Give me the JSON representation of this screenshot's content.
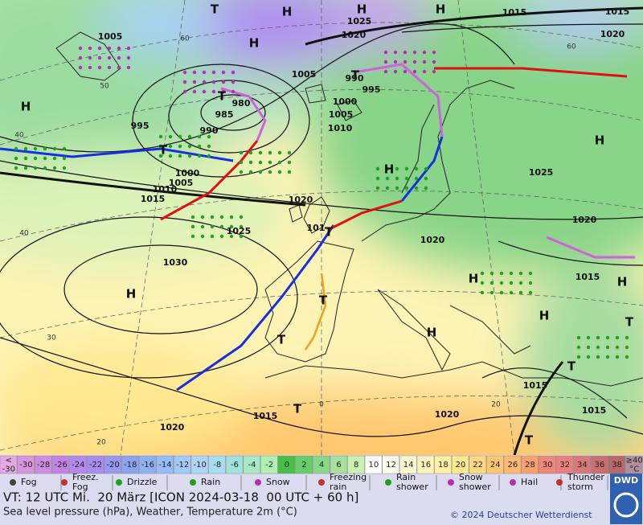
{
  "map": {
    "isobar_labels": [
      "1005",
      "1025",
      "1020",
      "1015",
      "1015",
      "1020",
      "1005",
      "990",
      "995",
      "1000",
      "1005",
      "1010",
      "980",
      "985",
      "990",
      "995",
      "1000",
      "1005",
      "1010",
      "1015",
      "1020",
      "1025",
      "1030",
      "1020",
      "1025",
      "1020",
      "1015",
      "1015",
      "1015",
      "1015",
      "1020",
      "1020",
      "101"
    ],
    "centers": [
      "H",
      "H",
      "H",
      "T",
      "H",
      "T",
      "H",
      "T",
      "T",
      "H",
      "T",
      "H",
      "H",
      "H",
      "T",
      "H",
      "H",
      "H",
      "T",
      "T",
      "T",
      "T",
      "T"
    ],
    "graticule_labels": [
      "60",
      "60",
      "50",
      "40",
      "40",
      "30",
      "20",
      "20",
      "0"
    ]
  },
  "legend": {
    "scale": [
      {
        "label": "<\n-30",
        "color": "#e4a8e4"
      },
      {
        "label": "-30",
        "color": "#d894dc"
      },
      {
        "label": "-28",
        "color": "#cc8ce0"
      },
      {
        "label": "-26",
        "color": "#c084e4"
      },
      {
        "label": "-24",
        "color": "#b488ec"
      },
      {
        "label": "-22",
        "color": "#a88cf0"
      },
      {
        "label": "-20",
        "color": "#9898f0"
      },
      {
        "label": "-18",
        "color": "#8ca4f0"
      },
      {
        "label": "-16",
        "color": "#90b0f4"
      },
      {
        "label": "-14",
        "color": "#98bcf8"
      },
      {
        "label": "-12",
        "color": "#a4c8f8"
      },
      {
        "label": "-10",
        "color": "#b0d4f8"
      },
      {
        "label": "-8",
        "color": "#a8dcf0"
      },
      {
        "label": "-6",
        "color": "#a4e0dc"
      },
      {
        "label": "-4",
        "color": "#a8e8c4"
      },
      {
        "label": "-2",
        "color": "#b0f0b0"
      },
      {
        "label": "0",
        "color": "#48c048"
      },
      {
        "label": "2",
        "color": "#68cc68"
      },
      {
        "label": "4",
        "color": "#88d888"
      },
      {
        "label": "6",
        "color": "#a8e0a0"
      },
      {
        "label": "8",
        "color": "#ccf0b0"
      },
      {
        "label": "10",
        "color": "#ffffff"
      },
      {
        "label": "12",
        "color": "#fffff0"
      },
      {
        "label": "14",
        "color": "#fffad4"
      },
      {
        "label": "16",
        "color": "#fff4bc"
      },
      {
        "label": "18",
        "color": "#fff0a4"
      },
      {
        "label": "20",
        "color": "#ffe890"
      },
      {
        "label": "22",
        "color": "#ffd880"
      },
      {
        "label": "24",
        "color": "#ffc870"
      },
      {
        "label": "26",
        "color": "#ffb870"
      },
      {
        "label": "28",
        "color": "#f8a070"
      },
      {
        "label": "30",
        "color": "#f08878"
      },
      {
        "label": "32",
        "color": "#e88080"
      },
      {
        "label": "34",
        "color": "#d87878"
      },
      {
        "label": "36",
        "color": "#c87070"
      },
      {
        "label": "38",
        "color": "#b86868"
      },
      {
        "label": "≥40\n°C",
        "color": "#b090a0"
      }
    ],
    "weather": [
      "Fog",
      "Freez.\nFog",
      "Drizzle",
      "Rain",
      "Snow",
      "Freezing\nrain",
      "Rain\nshower",
      "Snow\nshower",
      "Hail",
      "Thunder\nstorm"
    ]
  },
  "footer": {
    "valid_time": "VT: 12 UTC Mi.  20 März [ICON 2024-03-18  00 UTC + 60 h]",
    "description": "Sea level pressure (hPa), Weather, Temperature 2m (°C)",
    "copyright": "© 2024 Deutscher Wetterdienst",
    "logo": "DWD"
  }
}
